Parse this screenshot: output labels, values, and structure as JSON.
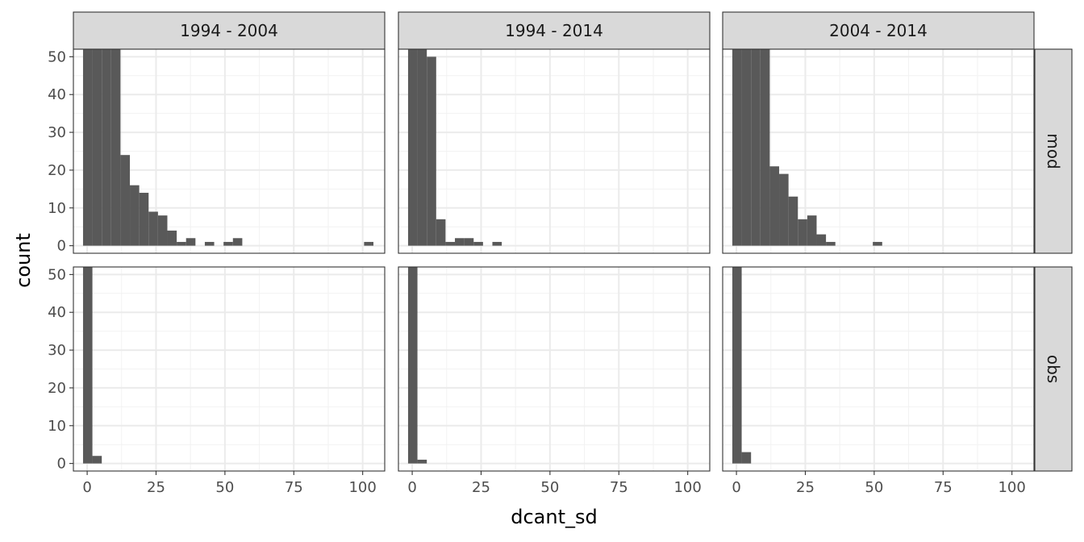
{
  "chart_data": {
    "type": "bar",
    "subtype": "histogram-facet-grid",
    "title": "",
    "xlabel": "dcant_sd",
    "ylabel": "count",
    "xlim": [
      -5,
      108
    ],
    "ylim": [
      -2,
      52
    ],
    "y_clipped_top": true,
    "grid": true,
    "theme": "bw",
    "bar_color": "#595959",
    "bin_width": 3.4,
    "x_ticks": [
      0,
      25,
      50,
      75,
      100
    ],
    "y_ticks": [
      0,
      10,
      20,
      30,
      40,
      50
    ],
    "col_facets": [
      "1994 - 2004",
      "1994 - 2014",
      "2004 - 2014"
    ],
    "row_facets": [
      "mod",
      "obs"
    ],
    "panels": [
      {
        "col": "1994 - 2004",
        "row": "mod",
        "bin_left_edges": [
          -1.5,
          1.9,
          5.3,
          8.7,
          12.1,
          15.5,
          18.9,
          22.3,
          25.7,
          29.1,
          32.5,
          35.9,
          42.7,
          49.5,
          52.9,
          100.5
        ],
        "counts": [
          60,
          60,
          60,
          60,
          24,
          16,
          14,
          9,
          8,
          4,
          1,
          2,
          1,
          1,
          2,
          1
        ]
      },
      {
        "col": "1994 - 2014",
        "row": "mod",
        "bin_left_edges": [
          -1.5,
          1.9,
          5.3,
          8.7,
          12.1,
          15.5,
          18.9,
          22.3,
          29.1
        ],
        "counts": [
          60,
          53,
          50,
          7,
          1,
          2,
          2,
          1,
          1
        ]
      },
      {
        "col": "2004 - 2014",
        "row": "mod",
        "bin_left_edges": [
          -1.5,
          1.9,
          5.3,
          8.7,
          12.1,
          15.5,
          18.9,
          22.3,
          25.7,
          29.1,
          32.5,
          49.5
        ],
        "counts": [
          60,
          60,
          60,
          60,
          21,
          19,
          13,
          7,
          8,
          3,
          1,
          1
        ]
      },
      {
        "col": "1994 - 2004",
        "row": "obs",
        "bin_left_edges": [
          -1.5,
          1.9
        ],
        "counts": [
          60,
          2
        ]
      },
      {
        "col": "1994 - 2014",
        "row": "obs",
        "bin_left_edges": [
          -1.5,
          1.9
        ],
        "counts": [
          60,
          1
        ]
      },
      {
        "col": "2004 - 2014",
        "row": "obs",
        "bin_left_edges": [
          -1.5,
          1.9
        ],
        "counts": [
          60,
          3
        ]
      }
    ]
  }
}
